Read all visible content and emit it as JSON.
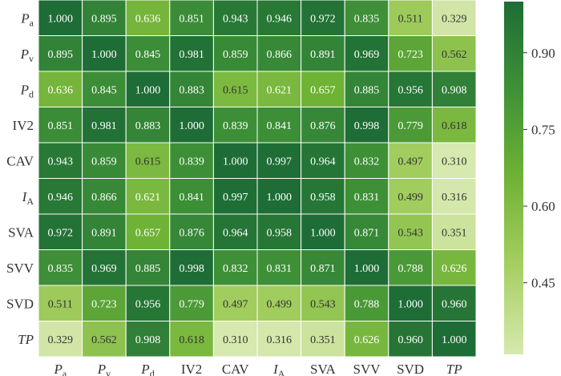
{
  "chart_data": {
    "type": "heatmap",
    "rows": [
      {
        "main": "P",
        "sub": "a",
        "italic": true
      },
      {
        "main": "P",
        "sub": "v",
        "italic": true
      },
      {
        "main": "P",
        "sub": "d",
        "italic": true
      },
      {
        "main": "IV2",
        "sub": "",
        "italic": false
      },
      {
        "main": "CAV",
        "sub": "",
        "italic": false
      },
      {
        "main": "I",
        "sub": "A",
        "italic": true
      },
      {
        "main": "SVA",
        "sub": "",
        "italic": false
      },
      {
        "main": "SVV",
        "sub": "",
        "italic": false
      },
      {
        "main": "SVD",
        "sub": "",
        "italic": false
      },
      {
        "main": "TP",
        "sub": "",
        "italic": true
      }
    ],
    "columns": [
      {
        "main": "P",
        "sub": "a",
        "italic": true
      },
      {
        "main": "P",
        "sub": "v",
        "italic": true
      },
      {
        "main": "P",
        "sub": "d",
        "italic": true
      },
      {
        "main": "IV2",
        "sub": "",
        "italic": false
      },
      {
        "main": "CAV",
        "sub": "",
        "italic": false
      },
      {
        "main": "I",
        "sub": "A",
        "italic": true
      },
      {
        "main": "SVA",
        "sub": "",
        "italic": false
      },
      {
        "main": "SVV",
        "sub": "",
        "italic": false
      },
      {
        "main": "SVD",
        "sub": "",
        "italic": false
      },
      {
        "main": "TP",
        "sub": "",
        "italic": true
      }
    ],
    "values": [
      [
        "1.000",
        "0.895",
        "0.636",
        "0.851",
        "0.943",
        "0.946",
        "0.972",
        "0.835",
        "0.511",
        "0.329"
      ],
      [
        "0.895",
        "1.000",
        "0.845",
        "0.981",
        "0.859",
        "0.866",
        "0.891",
        "0.969",
        "0.723",
        "0.562"
      ],
      [
        "0.636",
        "0.845",
        "1.000",
        "0.883",
        "0.615",
        "0.621",
        "0.657",
        "0.885",
        "0.956",
        "0.908"
      ],
      [
        "0.851",
        "0.981",
        "0.883",
        "1.000",
        "0.839",
        "0.841",
        "0.876",
        "0.998",
        "0.779",
        "0.618"
      ],
      [
        "0.943",
        "0.859",
        "0.615",
        "0.839",
        "1.000",
        "0.997",
        "0.964",
        "0.832",
        "0.497",
        "0.310"
      ],
      [
        "0.946",
        "0.866",
        "0.621",
        "0.841",
        "0.997",
        "1.000",
        "0.958",
        "0.831",
        "0.499",
        "0.316"
      ],
      [
        "0.972",
        "0.891",
        "0.657",
        "0.876",
        "0.964",
        "0.958",
        "1.000",
        "0.871",
        "0.543",
        "0.351"
      ],
      [
        "0.835",
        "0.969",
        "0.885",
        "0.998",
        "0.832",
        "0.831",
        "0.871",
        "1.000",
        "0.788",
        "0.626"
      ],
      [
        "0.511",
        "0.723",
        "0.956",
        "0.779",
        "0.497",
        "0.499",
        "0.543",
        "0.788",
        "1.000",
        "0.960"
      ],
      [
        "0.329",
        "0.562",
        "0.908",
        "0.618",
        "0.310",
        "0.316",
        "0.351",
        "0.626",
        "0.960",
        "1.000"
      ]
    ],
    "colorbar": {
      "min": 0.31,
      "max": 1.0,
      "ticks": [
        "0.45",
        "0.60",
        "0.75",
        "0.90"
      ],
      "colors": [
        "#d6e9ae",
        "#a6cf62",
        "#6fb236",
        "#3f9137",
        "#1e6d36"
      ]
    },
    "grid": true
  }
}
